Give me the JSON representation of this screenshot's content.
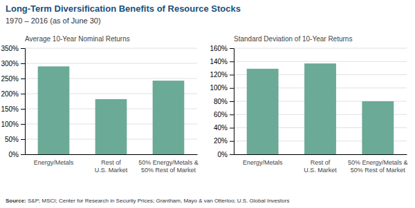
{
  "title": "Long-Term Diversification Benefits of Resource Stocks",
  "subtitle": "1970 – 2016 (as of June 30)",
  "annotations": [
    "Source:",
    " S&P; MSCI; Center for Research in Security Prices; Grantham, Mayo & van Otterloo; U.S. Global Investors"
  ],
  "chart_data": [
    {
      "type": "bar",
      "title": "Average 10-Year Nominal Returns",
      "categories": [
        "Energy/Metals",
        "Rest of\nU.S. Market",
        "50% Energy/Metals &\n50% Rest of Market"
      ],
      "values": [
        2.9,
        1.82,
        2.43
      ],
      "color": "#6aaa96",
      "ylim": [
        0,
        3.5
      ],
      "yticks": [
        {
          "value": 0,
          "label": "0%"
        },
        {
          "value": 0.5,
          "label": "50%"
        },
        {
          "value": 1.0,
          "label": "100%"
        },
        {
          "value": 1.5,
          "label": "150%"
        },
        {
          "value": 2.0,
          "label": "200%"
        },
        {
          "value": 2.5,
          "label": "250%"
        },
        {
          "value": 3.0,
          "label": "300%"
        },
        {
          "value": 3.5,
          "label": "350%"
        }
      ],
      "grid": true
    },
    {
      "type": "bar",
      "title": "Standard Deviation of 10-Year Returns",
      "categories": [
        "Energy/Metals",
        "Rest of\nU.S. Market",
        "50% Energy/Metals &\n50% Rest of Market"
      ],
      "values": [
        1.29,
        1.37,
        0.8
      ],
      "color": "#6aaa96",
      "ylim": [
        0,
        1.6
      ],
      "yticks": [
        {
          "value": 0,
          "label": "0%"
        },
        {
          "value": 0.2,
          "label": "20%"
        },
        {
          "value": 0.4,
          "label": "40%"
        },
        {
          "value": 0.6,
          "label": "60%"
        },
        {
          "value": 0.8,
          "label": "80%"
        },
        {
          "value": 1.0,
          "label": "100%"
        },
        {
          "value": 1.2,
          "label": "120%"
        },
        {
          "value": 1.4,
          "label": "140%"
        },
        {
          "value": 1.6,
          "label": "160%"
        }
      ],
      "grid": true
    }
  ]
}
